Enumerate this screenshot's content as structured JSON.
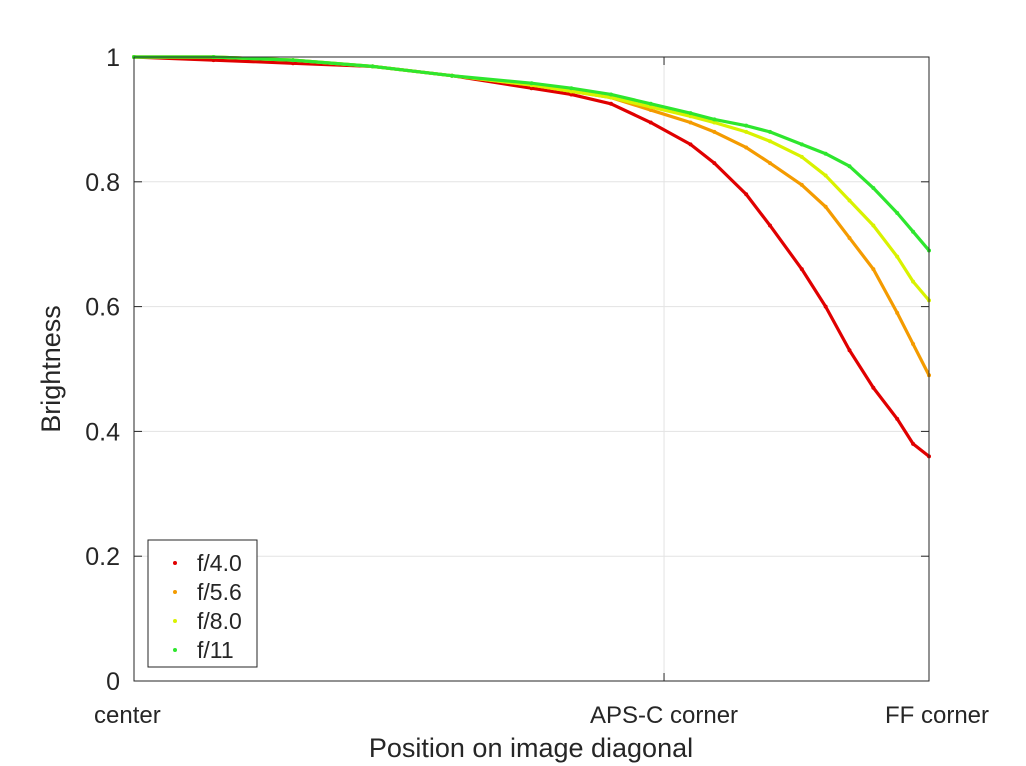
{
  "chart_data": {
    "type": "scatter",
    "xlabel": "Position on image diagonal",
    "ylabel": "Brightness",
    "x_ticks": [
      {
        "x": 0.0,
        "label": "center"
      },
      {
        "x": 0.6667,
        "label": "APS-C corner"
      },
      {
        "x": 1.0,
        "label": "FF corner"
      }
    ],
    "y_ticks": [
      0,
      0.2,
      0.4,
      0.6,
      0.8,
      1
    ],
    "xlim": [
      0,
      1
    ],
    "ylim": [
      0,
      1
    ],
    "grid": true,
    "legend_position": "bottom-left",
    "series": [
      {
        "name": "f/4.0",
        "color": "#e00000",
        "x": [
          0,
          0.1,
          0.2,
          0.3,
          0.4,
          0.5,
          0.55,
          0.6,
          0.65,
          0.7,
          0.73,
          0.77,
          0.8,
          0.84,
          0.87,
          0.9,
          0.93,
          0.96,
          0.98,
          1.0
        ],
        "y": [
          1.0,
          0.995,
          0.99,
          0.985,
          0.97,
          0.95,
          0.94,
          0.925,
          0.895,
          0.86,
          0.83,
          0.78,
          0.73,
          0.66,
          0.6,
          0.53,
          0.47,
          0.42,
          0.38,
          0.36
        ]
      },
      {
        "name": "f/5.6",
        "color": "#f49b00",
        "x": [
          0,
          0.1,
          0.2,
          0.3,
          0.4,
          0.5,
          0.55,
          0.6,
          0.65,
          0.7,
          0.73,
          0.77,
          0.8,
          0.84,
          0.87,
          0.9,
          0.93,
          0.96,
          0.98,
          1.0
        ],
        "y": [
          1.0,
          1.0,
          0.995,
          0.985,
          0.97,
          0.955,
          0.945,
          0.935,
          0.915,
          0.895,
          0.88,
          0.855,
          0.83,
          0.795,
          0.76,
          0.71,
          0.66,
          0.59,
          0.54,
          0.49
        ]
      },
      {
        "name": "f/8.0",
        "color": "#d9f200",
        "x": [
          0,
          0.1,
          0.2,
          0.3,
          0.4,
          0.5,
          0.55,
          0.6,
          0.65,
          0.7,
          0.73,
          0.77,
          0.8,
          0.84,
          0.87,
          0.9,
          0.93,
          0.96,
          0.98,
          1.0
        ],
        "y": [
          1.0,
          1.0,
          0.995,
          0.985,
          0.97,
          0.955,
          0.945,
          0.935,
          0.92,
          0.905,
          0.895,
          0.88,
          0.865,
          0.84,
          0.81,
          0.77,
          0.73,
          0.68,
          0.64,
          0.61
        ]
      },
      {
        "name": "f/11",
        "color": "#2ee62e",
        "x": [
          0,
          0.1,
          0.2,
          0.3,
          0.4,
          0.5,
          0.55,
          0.6,
          0.65,
          0.7,
          0.73,
          0.77,
          0.8,
          0.84,
          0.87,
          0.9,
          0.93,
          0.96,
          0.98,
          1.0
        ],
        "y": [
          1.0,
          1.0,
          0.995,
          0.985,
          0.97,
          0.958,
          0.95,
          0.94,
          0.925,
          0.91,
          0.9,
          0.89,
          0.88,
          0.86,
          0.845,
          0.825,
          0.79,
          0.75,
          0.72,
          0.69
        ]
      }
    ]
  }
}
